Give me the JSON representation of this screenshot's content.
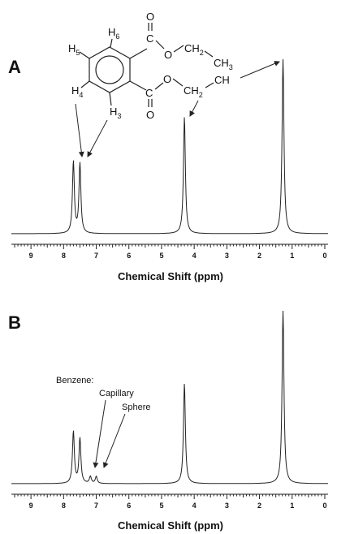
{
  "chart_data": [
    {
      "panel": "A",
      "type": "line",
      "xlabel": "Chemical Shift (ppm)",
      "xlim": [
        9.6,
        -0.1
      ],
      "x_reversed": true,
      "x_ticks": [
        9,
        8,
        7,
        6,
        5,
        4,
        3,
        2,
        1,
        0
      ],
      "peaks": [
        {
          "x": 7.7,
          "y": 0.41
        },
        {
          "x": 7.5,
          "y": 0.4
        },
        {
          "x": 4.3,
          "y": 0.67
        },
        {
          "x": 1.28,
          "y": 1.0
        }
      ],
      "structure": {
        "ring_labels": [
          {
            "name": "H6",
            "main": "H",
            "sub": "6"
          },
          {
            "name": "H5",
            "main": "H",
            "sub": "5"
          },
          {
            "name": "H4",
            "main": "H",
            "sub": "4"
          },
          {
            "name": "H3",
            "main": "H",
            "sub": "3"
          }
        ],
        "oxygen": "O",
        "carbon": "C",
        "ch2": {
          "main": "CH",
          "sub": "2"
        },
        "ch3": {
          "main": "CH",
          "sub": "3"
        }
      }
    },
    {
      "panel": "B",
      "type": "line",
      "xlabel": "Chemical Shift (ppm)",
      "xlim": [
        9.6,
        -0.1
      ],
      "x_reversed": true,
      "x_ticks": [
        9,
        8,
        7,
        6,
        5,
        4,
        3,
        2,
        1,
        0
      ],
      "peaks": [
        {
          "x": 7.7,
          "y": 0.3
        },
        {
          "x": 7.5,
          "y": 0.26
        },
        {
          "x": 7.18,
          "y": 0.04
        },
        {
          "x": 7.0,
          "y": 0.04
        },
        {
          "x": 4.3,
          "y": 0.58
        },
        {
          "x": 1.28,
          "y": 1.0
        }
      ],
      "annotations": [
        "Benzene:",
        "Capillary",
        "Sphere"
      ]
    }
  ]
}
